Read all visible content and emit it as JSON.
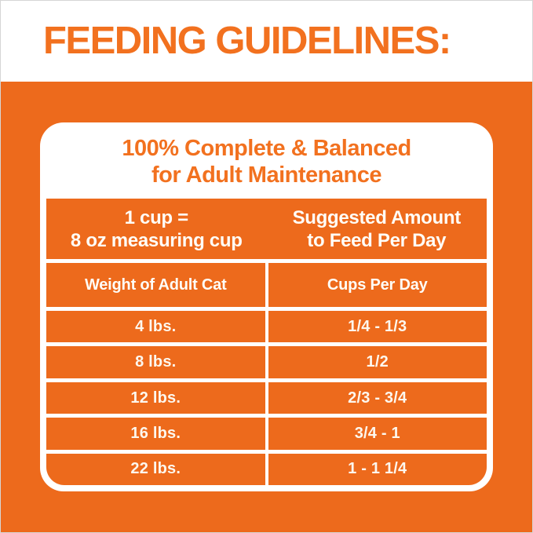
{
  "page_title": "FEEDING GUIDELINES:",
  "card": {
    "title_line1": "100% Complete & Balanced",
    "title_line2": "for Adult Maintenance",
    "header": {
      "left_line1": "1 cup =",
      "left_line2": "8 oz measuring cup",
      "right_line1": "Suggested Amount",
      "right_line2": "to Feed Per Day"
    },
    "columns": {
      "left": "Weight of Adult Cat",
      "right": "Cups Per Day"
    },
    "rows": [
      {
        "weight": "4 lbs.",
        "cups": "1/4 - 1/3"
      },
      {
        "weight": "8 lbs.",
        "cups": "1/2"
      },
      {
        "weight": "12 lbs.",
        "cups": "2/3 - 3/4"
      },
      {
        "weight": "16 lbs.",
        "cups": "3/4 - 1"
      },
      {
        "weight": "22 lbs.",
        "cups": "1 - 1 1/4"
      }
    ]
  },
  "colors": {
    "orange_background": "#ED6A1C",
    "orange_heading_text": "#F2711F",
    "table_text": "#FFFDF7",
    "card_background": "#FFFFFF"
  }
}
